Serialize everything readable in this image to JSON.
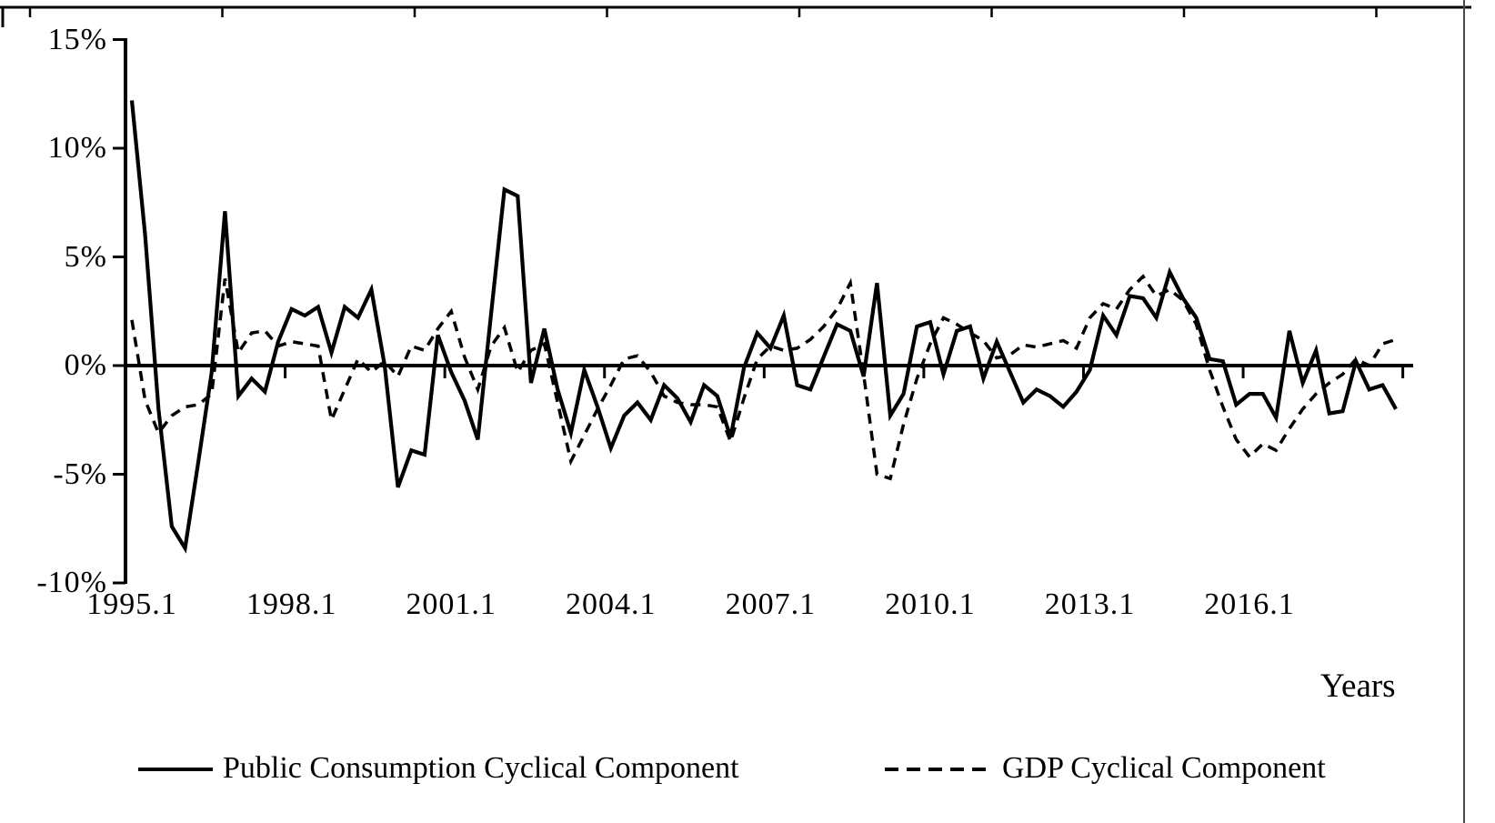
{
  "figure": {
    "background": "#ffffff",
    "line_color": "#000000",
    "border_color": "#4a4a4a"
  },
  "y_axis": {
    "min": -10,
    "max": 15,
    "ticks": [
      {
        "label": "15%",
        "value": 15
      },
      {
        "label": "10%",
        "value": 10
      },
      {
        "label": "5%",
        "value": 5
      },
      {
        "label": "0%",
        "value": 0
      },
      {
        "label": "-5%",
        "value": -5
      },
      {
        "label": "-10%",
        "value": -10
      }
    ]
  },
  "x_axis": {
    "title": "Years",
    "tick_labels": [
      {
        "label": "1995.1",
        "quarter_index": 0
      },
      {
        "label": "1998.1",
        "quarter_index": 12
      },
      {
        "label": "2001.1",
        "quarter_index": 24
      },
      {
        "label": "2004.1",
        "quarter_index": 36
      },
      {
        "label": "2007.1",
        "quarter_index": 48
      },
      {
        "label": "2010.1",
        "quarter_index": 60
      },
      {
        "label": "2013.1",
        "quarter_index": 72
      },
      {
        "label": "2016.1",
        "quarter_index": 84
      }
    ],
    "axis_tick_quarters": [
      0,
      12,
      24,
      36,
      48,
      60,
      72,
      84,
      96
    ]
  },
  "legend": [
    {
      "label": "Public Consumption Cyclical Component",
      "style": "solid"
    },
    {
      "label": "GDP Cyclical Component",
      "style": "dashed"
    }
  ],
  "chart_data": {
    "type": "line",
    "x_unit": "quarter",
    "x_start": "1995.1",
    "x_end": "2018.4",
    "ylim": [
      -10,
      15
    ],
    "grid": false,
    "legend_position": "bottom",
    "series": [
      {
        "name": "Public Consumption Cyclical Component",
        "style": "solid",
        "color": "#000000",
        "values": [
          12.2,
          6.0,
          -2.0,
          -7.4,
          -8.4,
          -4.4,
          -0.3,
          7.1,
          -1.4,
          -0.6,
          -1.2,
          1.1,
          2.6,
          2.3,
          2.7,
          0.6,
          2.7,
          2.2,
          3.5,
          0.0,
          -5.6,
          -3.9,
          -4.1,
          1.4,
          -0.3,
          -1.6,
          -3.4,
          2.4,
          8.1,
          7.8,
          -0.8,
          1.7,
          -1.1,
          -3.1,
          -0.2,
          -1.9,
          -3.8,
          -2.3,
          -1.7,
          -2.5,
          -0.9,
          -1.5,
          -2.6,
          -0.9,
          -1.4,
          -3.3,
          -0.1,
          1.5,
          0.8,
          2.3,
          -0.9,
          -1.1,
          0.4,
          1.9,
          1.6,
          -0.5,
          3.8,
          -2.3,
          -1.3,
          1.8,
          2.0,
          -0.4,
          1.6,
          1.8,
          -0.6,
          1.1,
          -0.3,
          -1.7,
          -1.1,
          -1.4,
          -1.9,
          -1.2,
          -0.2,
          2.3,
          1.4,
          3.2,
          3.1,
          2.2,
          4.3,
          3.1,
          2.2,
          0.3,
          0.2,
          -1.8,
          -1.3,
          -1.3,
          -2.4,
          1.6,
          -0.8,
          0.7,
          -2.2,
          -2.1,
          0.2,
          -1.1,
          -0.9,
          -2.0
        ]
      },
      {
        "name": "GDP Cyclical Component",
        "style": "dashed",
        "color": "#000000",
        "values": [
          2.1,
          -1.6,
          -3.1,
          -2.3,
          -1.9,
          -1.8,
          -1.3,
          4.0,
          0.6,
          1.5,
          1.6,
          0.9,
          1.1,
          1.0,
          0.9,
          -2.5,
          -1.1,
          0.3,
          -0.3,
          0.2,
          -0.5,
          0.9,
          0.7,
          1.7,
          2.5,
          0.4,
          -1.1,
          0.9,
          1.75,
          -0.3,
          0.7,
          1.0,
          -1.7,
          -4.4,
          -3.2,
          -2.0,
          -0.9,
          0.3,
          0.45,
          -0.3,
          -1.4,
          -1.7,
          -1.8,
          -1.8,
          -1.9,
          -3.5,
          -1.5,
          0.3,
          0.9,
          0.7,
          0.8,
          1.2,
          1.8,
          2.6,
          3.8,
          -0.4,
          -5.0,
          -5.2,
          -2.7,
          -0.6,
          1.0,
          2.2,
          1.9,
          1.5,
          1.15,
          0.35,
          0.5,
          0.95,
          0.85,
          1.0,
          1.15,
          0.8,
          2.2,
          2.85,
          2.6,
          3.5,
          4.1,
          3.2,
          3.5,
          3.0,
          1.9,
          -0.2,
          -1.9,
          -3.4,
          -4.2,
          -3.6,
          -3.9,
          -2.9,
          -2.0,
          -1.3,
          -0.8,
          -0.4,
          0.3,
          0.0,
          1.0,
          1.2
        ]
      }
    ]
  }
}
